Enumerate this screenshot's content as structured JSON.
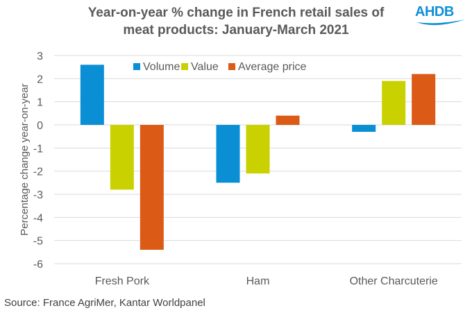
{
  "logo": {
    "text": "AHDB"
  },
  "source": "Source: France AgriMer, Kantar Worldpanel",
  "chart_data": {
    "type": "bar",
    "title_lines": [
      "Year-on-year % change in French retail sales of",
      "meat products: January-March  2021"
    ],
    "xlabel": "",
    "ylabel": "Percentage change year-on-year",
    "ylim": [
      -6,
      3
    ],
    "yticks": [
      3,
      2,
      1,
      0,
      -1,
      -2,
      -3,
      -4,
      -5,
      -6
    ],
    "grid": true,
    "legend_position": "top-center",
    "categories": [
      "Fresh Pork",
      "Ham",
      "Other Charcuterie"
    ],
    "series": [
      {
        "name": "Volume",
        "color": "#0a8fd5",
        "values": [
          2.6,
          -2.5,
          -0.3
        ]
      },
      {
        "name": "Value",
        "color": "#c9d200",
        "values": [
          -2.8,
          -2.1,
          1.9
        ]
      },
      {
        "name": "Average price",
        "color": "#db5a16",
        "values": [
          -5.4,
          0.4,
          2.2
        ]
      }
    ]
  }
}
